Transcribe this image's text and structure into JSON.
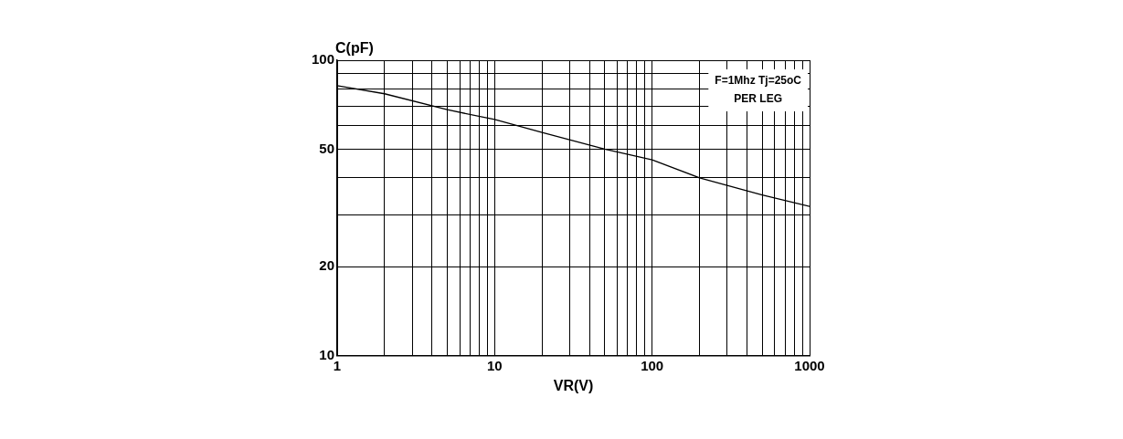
{
  "chart_data": {
    "type": "line",
    "xlabel": "VR(V)",
    "ylabel": "C(pF)",
    "annotations": [
      "F=1Mhz Tj=25oC",
      "PER LEG"
    ],
    "x": [
      1,
      2,
      5,
      10,
      20,
      50,
      100,
      200,
      500,
      1000
    ],
    "series": [
      {
        "color": "#000000",
        "values": [
          82,
          77,
          68,
          63,
          57,
          50,
          46,
          40,
          35,
          32
        ]
      }
    ],
    "log": "xy",
    "grid": true,
    "marker": "none",
    "line_style": "solid",
    "xlim": [
      1,
      1000
    ],
    "ylim": [
      10,
      100
    ],
    "xticks": [
      1,
      {
        "value": 2,
        "label": null
      },
      {
        "value": 3,
        "label": null
      },
      {
        "value": 4,
        "label": null
      },
      {
        "value": 5,
        "label": null
      },
      {
        "value": 6,
        "label": null
      },
      {
        "value": 7,
        "label": null
      },
      {
        "value": 8,
        "label": null
      },
      {
        "value": 9,
        "label": null
      },
      10,
      {
        "value": 20,
        "label": null
      },
      {
        "value": 30,
        "label": null
      },
      {
        "value": 40,
        "label": null
      },
      {
        "value": 50,
        "label": null
      },
      {
        "value": 60,
        "label": null
      },
      {
        "value": 70,
        "label": null
      },
      {
        "value": 80,
        "label": null
      },
      {
        "value": 90,
        "label": null
      },
      100,
      {
        "value": 200,
        "label": null
      },
      {
        "value": 300,
        "label": null
      },
      {
        "value": 400,
        "label": null
      },
      {
        "value": 500,
        "label": null
      },
      {
        "value": 600,
        "label": null
      },
      {
        "value": 700,
        "label": null
      },
      {
        "value": 800,
        "label": null
      },
      {
        "value": 900,
        "label": null
      },
      1000
    ],
    "yticks": [
      10,
      20,
      {
        "value": 30,
        "label": null
      },
      {
        "value": 40,
        "label": null
      },
      50,
      {
        "value": 60,
        "label": null
      },
      {
        "value": 70,
        "label": null
      },
      {
        "value": 80,
        "label": null
      },
      {
        "value": 90,
        "label": null
      },
      100
    ]
  }
}
